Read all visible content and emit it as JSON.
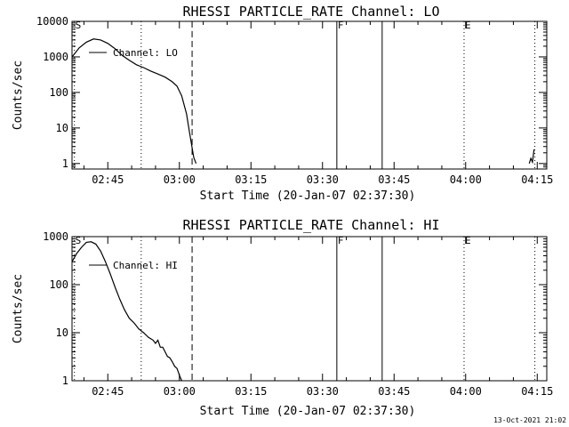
{
  "footer": {
    "timestamp": "13-Oct-2021 21:02"
  },
  "chart_data": [
    {
      "type": "line",
      "title": "RHESSI PARTICLE_RATE Channel: LO",
      "xlabel": "Start Time (20-Jan-07 02:37:30)",
      "ylabel": "Counts/sec",
      "yscale": "log",
      "xlim": [
        "02:37:30",
        "04:17:00"
      ],
      "ylim": [
        0.7,
        10000
      ],
      "xticks": [
        "02:45",
        "03:00",
        "03:15",
        "03:30",
        "03:45",
        "04:00",
        "04:15"
      ],
      "yticks": [
        "1",
        "10",
        "100",
        "1000",
        "10000"
      ],
      "legend": {
        "placement": "top-left",
        "entries": [
          "Channel: LO"
        ]
      },
      "series": [
        {
          "name": "Channel: LO",
          "x": [
            "02:37:30",
            "02:39:00",
            "02:40:30",
            "02:42:00",
            "02:43:30",
            "02:45:00",
            "02:46:30",
            "02:48:00",
            "02:49:30",
            "02:51:00",
            "02:52:30",
            "02:54:00",
            "02:55:30",
            "02:57:00",
            "02:58:30",
            "02:59:30",
            "03:00:30",
            "03:01:30",
            "03:02:15",
            "03:03:00",
            "03:03:30"
          ],
          "y": [
            1000,
            1800,
            2600,
            3200,
            3000,
            2400,
            1700,
            1100,
            800,
            600,
            500,
            400,
            330,
            270,
            200,
            150,
            80,
            25,
            6,
            1.5,
            1
          ]
        },
        {
          "name": "",
          "x": [
            "04:13:20",
            "04:13:40",
            "04:14:00",
            "04:14:20"
          ],
          "y": [
            1,
            1.4,
            1.1,
            2.5
          ]
        }
      ],
      "vlines": [
        {
          "x": "02:38:00",
          "style": "dotted",
          "label": "S"
        },
        {
          "x": "02:52:00",
          "style": "dotted",
          "label": ""
        },
        {
          "x": "03:02:40",
          "style": "dashed",
          "label": ""
        },
        {
          "x": "03:33:00",
          "style": "solid",
          "label": "F"
        },
        {
          "x": "03:42:30",
          "style": "solid",
          "label": ""
        },
        {
          "x": "03:59:40",
          "style": "dotted",
          "label": "E"
        },
        {
          "x": "04:14:30",
          "style": "dotted",
          "label": ""
        }
      ]
    },
    {
      "type": "line",
      "title": "RHESSI PARTICLE_RATE Channel: HI",
      "xlabel": "Start Time (20-Jan-07 02:37:30)",
      "ylabel": "Counts/sec",
      "yscale": "log",
      "xlim": [
        "02:37:30",
        "04:17:00"
      ],
      "ylim": [
        1,
        1000
      ],
      "xticks": [
        "02:45",
        "03:00",
        "03:15",
        "03:30",
        "03:45",
        "04:00",
        "04:15"
      ],
      "yticks": [
        "1",
        "10",
        "100",
        "1000"
      ],
      "legend": {
        "placement": "top-left",
        "entries": [
          "Channel: HI"
        ]
      },
      "series": [
        {
          "name": "Channel: HI",
          "x": [
            "02:37:30",
            "02:38:30",
            "02:39:30",
            "02:40:30",
            "02:41:30",
            "02:42:30",
            "02:43:30",
            "02:44:30",
            "02:45:30",
            "02:46:30",
            "02:47:30",
            "02:48:30",
            "02:49:30",
            "02:50:30",
            "02:51:30",
            "02:52:30",
            "02:53:30",
            "02:54:30",
            "02:55:00",
            "02:55:30",
            "02:56:00",
            "02:56:30",
            "02:57:00",
            "02:57:30",
            "02:58:00",
            "02:58:30",
            "02:59:00",
            "02:59:30",
            "03:00:00",
            "03:00:30"
          ],
          "y": [
            300,
            450,
            600,
            760,
            780,
            700,
            500,
            300,
            170,
            90,
            50,
            30,
            20,
            16,
            12,
            10,
            8,
            7,
            6,
            7,
            5,
            5,
            4,
            3.2,
            3,
            2.5,
            2,
            1.8,
            1.3,
            1
          ]
        }
      ],
      "vlines": [
        {
          "x": "02:38:00",
          "style": "dotted",
          "label": "S"
        },
        {
          "x": "02:52:00",
          "style": "dotted",
          "label": ""
        },
        {
          "x": "03:02:40",
          "style": "dashed",
          "label": ""
        },
        {
          "x": "03:33:00",
          "style": "solid",
          "label": "F"
        },
        {
          "x": "03:42:30",
          "style": "solid",
          "label": ""
        },
        {
          "x": "03:59:40",
          "style": "dotted",
          "label": "E"
        },
        {
          "x": "04:14:30",
          "style": "dotted",
          "label": ""
        }
      ]
    }
  ]
}
